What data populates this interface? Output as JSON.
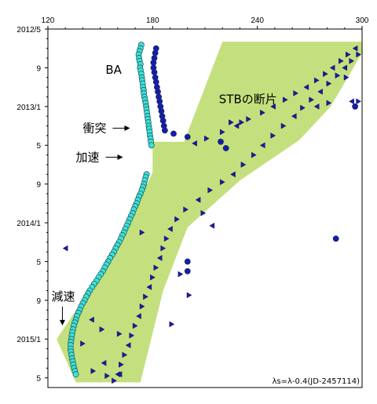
{
  "chart_data": {
    "type": "scatter",
    "title": "",
    "xlabel": "",
    "ylabel": "",
    "x_range": [
      120,
      300
    ],
    "x_ticks": [
      120,
      180,
      240,
      300
    ],
    "y_range": [
      "2012/5",
      "2015/6"
    ],
    "y_reversed": true,
    "y_tick_labels": [
      "2012/5",
      "9",
      "2013/1",
      "5",
      "9",
      "2014/1",
      "5",
      "9",
      "2015/1",
      "5"
    ],
    "y_tick_months": [
      0,
      4,
      8,
      12,
      16,
      20,
      24,
      28,
      32,
      36
    ],
    "grid": false,
    "region": {
      "name": "STB debris region",
      "color": "#c4e07e",
      "outline": [
        [
          136,
          "2015/5/15"
        ],
        [
          173,
          "2015/5/15"
        ],
        [
          186,
          "2014/8"
        ],
        [
          200,
          "2014/1/15"
        ],
        [
          230,
          "2013/8/20"
        ],
        [
          264,
          "2013/4/15"
        ],
        [
          282,
          "2013/1/1"
        ],
        [
          300,
          "2012/7/15"
        ],
        [
          300,
          "2012/6/10"
        ],
        [
          220,
          "2012/6/10"
        ],
        [
          198,
          "2013/4/20"
        ],
        [
          180,
          "2013/4/20"
        ],
        [
          180,
          "2013/7/25"
        ],
        [
          157,
          "2014/4/15"
        ],
        [
          125,
          "2015/1/1"
        ],
        [
          136,
          "2015/5/15"
        ]
      ]
    },
    "series": [
      {
        "name": "BA",
        "marker": "circle",
        "color": "#40e0d0",
        "points": [
          [
            173.5,
            "2012/6/20"
          ],
          [
            173,
            "2012/7/1"
          ],
          [
            172.5,
            "2012/7/10"
          ],
          [
            172,
            "2012/7/20"
          ],
          [
            172.2,
            "2012/8/1"
          ],
          [
            172.5,
            "2012/8/10"
          ],
          [
            173,
            "2012/8/20"
          ],
          [
            172.8,
            "2012/9/1"
          ],
          [
            173.2,
            "2012/9/10"
          ],
          [
            173.5,
            "2012/9/20"
          ],
          [
            173.8,
            "2012/10/1"
          ],
          [
            174,
            "2012/10/10"
          ],
          [
            174.3,
            "2012/10/20"
          ],
          [
            174.5,
            "2012/11/1"
          ],
          [
            174.8,
            "2012/11/10"
          ],
          [
            175,
            "2012/11/20"
          ],
          [
            175.3,
            "2012/12/1"
          ],
          [
            175.6,
            "2012/12/10"
          ],
          [
            176,
            "2012/12/20"
          ],
          [
            176.3,
            "2013/1/1"
          ],
          [
            176.5,
            "2013/1/10"
          ],
          [
            176.8,
            "2013/1/20"
          ],
          [
            177,
            "2013/2/1"
          ],
          [
            177.3,
            "2013/2/10"
          ],
          [
            177.5,
            "2013/2/20"
          ],
          [
            177.8,
            "2013/3/1"
          ],
          [
            178,
            "2013/3/10"
          ],
          [
            178.3,
            "2013/3/20"
          ],
          [
            178.5,
            "2013/4/1"
          ],
          [
            178.8,
            "2013/4/10"
          ],
          [
            179,
            "2013/4/20"
          ],
          [
            179.3,
            "2013/5/1"
          ],
          [
            176.5,
            "2013/8/1"
          ],
          [
            176,
            "2013/8/10"
          ],
          [
            175.5,
            "2013/8/20"
          ],
          [
            175,
            "2013/9/1"
          ],
          [
            174.5,
            "2013/9/10"
          ],
          [
            173.8,
            "2013/9/20"
          ],
          [
            173,
            "2013/10/1"
          ],
          [
            172.2,
            "2013/10/10"
          ],
          [
            171.5,
            "2013/10/20"
          ],
          [
            170.8,
            "2013/11/1"
          ],
          [
            170,
            "2013/11/10"
          ],
          [
            169.2,
            "2013/11/20"
          ],
          [
            168.5,
            "2013/12/1"
          ],
          [
            167.6,
            "2013/12/10"
          ],
          [
            166.8,
            "2013/12/20"
          ],
          [
            166,
            "2014/1/1"
          ],
          [
            165.2,
            "2014/1/10"
          ],
          [
            164.3,
            "2014/1/20"
          ],
          [
            163.5,
            "2014/2/1"
          ],
          [
            162.6,
            "2014/2/10"
          ],
          [
            161.8,
            "2014/2/20"
          ],
          [
            160.8,
            "2014/3/1"
          ],
          [
            159.8,
            "2014/3/10"
          ],
          [
            158.8,
            "2014/3/20"
          ],
          [
            157.8,
            "2014/4/1"
          ],
          [
            156.8,
            "2014/4/10"
          ],
          [
            155.6,
            "2014/4/20"
          ],
          [
            154.5,
            "2014/5/1"
          ],
          [
            153.5,
            "2014/5/10"
          ],
          [
            152.5,
            "2014/5/20"
          ],
          [
            151.5,
            "2014/6/1"
          ],
          [
            150.3,
            "2014/6/10"
          ],
          [
            149,
            "2014/6/20"
          ],
          [
            147.8,
            "2014/7/1"
          ],
          [
            146.5,
            "2014/7/10"
          ],
          [
            145.3,
            "2014/7/20"
          ],
          [
            144,
            "2014/8/1"
          ],
          [
            143,
            "2014/8/10"
          ],
          [
            142,
            "2014/8/20"
          ],
          [
            141,
            "2014/9/1"
          ],
          [
            140,
            "2014/9/10"
          ],
          [
            139,
            "2014/9/20"
          ],
          [
            138.2,
            "2014/10/1"
          ],
          [
            137.4,
            "2014/10/10"
          ],
          [
            136.6,
            "2014/10/20"
          ],
          [
            136,
            "2014/11/1"
          ],
          [
            135.4,
            "2014/11/10"
          ],
          [
            134.8,
            "2014/11/20"
          ],
          [
            134.4,
            "2014/12/1"
          ],
          [
            134,
            "2014/12/10"
          ],
          [
            133.7,
            "2014/12/20"
          ],
          [
            133.4,
            "2015/1/1"
          ],
          [
            133.2,
            "2015/1/10"
          ],
          [
            133,
            "2015/1/20"
          ],
          [
            133,
            "2015/2/1"
          ],
          [
            133.2,
            "2015/2/10"
          ],
          [
            133.5,
            "2015/2/20"
          ],
          [
            133.8,
            "2015/3/1"
          ],
          [
            134.2,
            "2015/3/10"
          ],
          [
            134.6,
            "2015/3/20"
          ],
          [
            135,
            "2015/4/1"
          ],
          [
            135.5,
            "2015/4/10"
          ],
          [
            136,
            "2015/4/20"
          ]
        ]
      },
      {
        "name": "STBの断片",
        "marker": "triangle",
        "color": "#1a1aa8",
        "points": [
          [
            296,
            "2012/7/1"
          ],
          [
            292,
            "2012/7/20"
          ],
          [
            288,
            "2012/8/10"
          ],
          [
            283,
            "2012/9/1"
          ],
          [
            279,
            "2012/9/20"
          ],
          [
            274,
            "2012/10/10"
          ],
          [
            268,
            "2012/11/1"
          ],
          [
            262,
            "2012/11/20"
          ],
          [
            256,
            "2012/12/10"
          ],
          [
            249,
            "2013/1/1"
          ],
          [
            243,
            "2013/1/20"
          ],
          [
            235,
            "2013/2/10"
          ],
          [
            228,
            "2013/3/1"
          ],
          [
            220,
            "2013/3/20"
          ],
          [
            211,
            "2013/4/10"
          ],
          [
            204,
            "2013/4/25"
          ],
          [
            298,
            "2012/7/20"
          ],
          [
            294,
            "2012/8/10"
          ],
          [
            290,
            "2012/9/1"
          ],
          [
            286,
            "2012/9/25"
          ],
          [
            281,
            "2012/10/20"
          ],
          [
            276,
            "2012/11/15"
          ],
          [
            271,
            "2012/12/10"
          ],
          [
            266,
            "2013/1/5"
          ],
          [
            261,
            "2013/2/1"
          ],
          [
            255,
            "2013/3/1"
          ],
          [
            249,
            "2013/4/1"
          ],
          [
            243,
            "2013/5/1"
          ],
          [
            238,
            "2013/6/1"
          ],
          [
            232,
            "2013/7/1"
          ],
          [
            226,
            "2013/8/1"
          ],
          [
            220,
            "2013/8/25"
          ],
          [
            213,
            "2013/9/20"
          ],
          [
            206,
            "2013/10/20"
          ],
          [
            199,
            "2013/11/20"
          ],
          [
            194,
            "2013/12/20"
          ],
          [
            190,
            "2014/1/20"
          ],
          [
            188,
            "2014/2/20"
          ],
          [
            186,
            "2014/3/20"
          ],
          [
            184,
            "2014/4/20"
          ],
          [
            182,
            "2014/5/20"
          ],
          [
            180,
            "2014/6/20"
          ],
          [
            178,
            "2014/7/20"
          ],
          [
            176,
            "2014/8/20"
          ],
          [
            174,
            "2014/9/20"
          ],
          [
            172,
            "2014/10/20"
          ],
          [
            170,
            "2014/11/20"
          ],
          [
            168,
            "2014/12/20"
          ],
          [
            166,
            "2015/1/20"
          ],
          [
            164,
            "2015/2/20"
          ],
          [
            162,
            "2015/3/20"
          ],
          [
            160,
            "2015/4/20"
          ],
          [
            158,
            "2015/5/10"
          ],
          [
            146,
            "2015/4/10"
          ],
          [
            152,
            "2015/3/15"
          ],
          [
            161,
            "2014/12/15"
          ],
          [
            209,
            "2013/12/1"
          ],
          [
            214,
            "2014/1/10"
          ],
          [
            196,
            "2014/6/10"
          ],
          [
            174,
            "2014/2/1"
          ],
          [
            130,
            "2014/3/20"
          ],
          [
            225,
            "2013/2/20"
          ],
          [
            231,
            "2013/2/20"
          ],
          [
            274,
            "2013/1/1"
          ],
          [
            281,
            "2012/12/20"
          ],
          [
            291,
            "2012/10/1"
          ],
          [
            294,
            "2012/12/15"
          ],
          [
            298,
            "2012/12/15"
          ],
          [
            151,
            "2014/12/1"
          ],
          [
            145,
            "2014/11/1"
          ],
          [
            191,
            "2014/11/15"
          ],
          [
            201,
            "2014/8/15"
          ],
          [
            161,
            "2015/4/20"
          ],
          [
            154,
            "2015/4/25"
          ],
          [
            140,
            "2015/1/15"
          ]
        ]
      },
      {
        "name": "",
        "marker": "circle",
        "color": "#1a1aa8",
        "points": [
          [
            182,
            "2012/7/1"
          ],
          [
            181.5,
            "2012/7/15"
          ],
          [
            181,
            "2012/8/1"
          ],
          [
            180.5,
            "2012/8/15"
          ],
          [
            180.5,
            "2012/9/1"
          ],
          [
            181,
            "2012/9/15"
          ],
          [
            181.5,
            "2012/10/1"
          ],
          [
            182,
            "2012/10/15"
          ],
          [
            182.5,
            "2012/11/1"
          ],
          [
            183,
            "2012/11/15"
          ],
          [
            183.5,
            "2012/12/1"
          ],
          [
            184,
            "2012/12/15"
          ],
          [
            184.5,
            "2013/1/1"
          ],
          [
            185,
            "2013/1/15"
          ],
          [
            185.5,
            "2013/2/1"
          ],
          [
            186,
            "2013/2/15"
          ],
          [
            186.5,
            "2013/3/1"
          ],
          [
            187,
            "2013/3/15"
          ],
          [
            192,
            "2013/3/25"
          ],
          [
            200,
            "2013/4/5"
          ],
          [
            219,
            "2013/4/20"
          ],
          [
            222,
            "2013/5/10"
          ],
          [
            285,
            "2014/2/20"
          ],
          [
            296,
            "2013/1/1"
          ],
          [
            200,
            "2014/5/1"
          ],
          [
            200,
            "2014/6/1"
          ]
        ]
      }
    ],
    "annotations": [
      {
        "text": "BA",
        "at": [
          153,
          "2012/9/20"
        ]
      },
      {
        "text": "STBの断片",
        "at": [
          218,
          "2012/12/20"
        ]
      },
      {
        "text": "衝突",
        "at": [
          140,
          "2013/3/20"
        ],
        "arrow": "right"
      },
      {
        "text": "加速",
        "at": [
          136,
          "2013/6/20"
        ],
        "arrow": "right"
      },
      {
        "text": "減速",
        "at": [
          122,
          "2014/9/1"
        ],
        "arrow": "down"
      }
    ],
    "footnote": "λs=λ-0.4(JD-2457114)"
  }
}
